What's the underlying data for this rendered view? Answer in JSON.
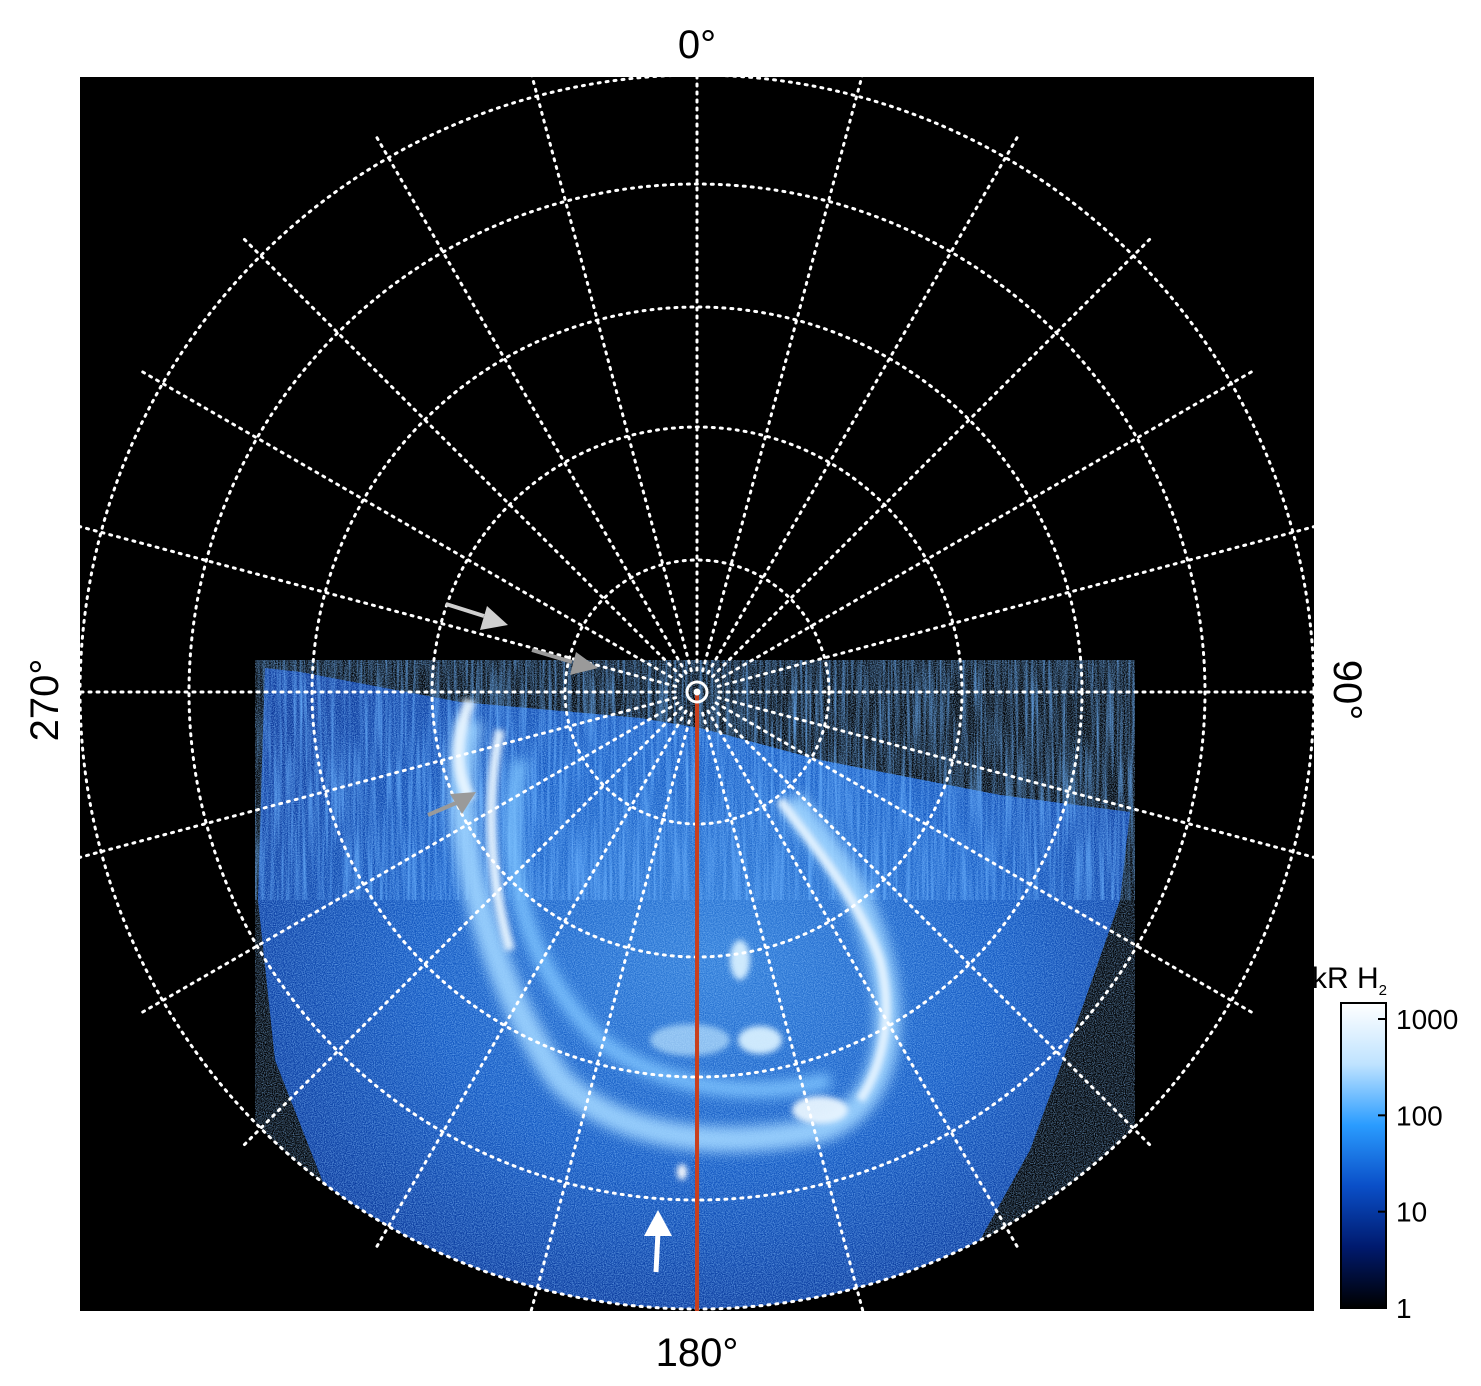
{
  "figure": {
    "longitude_labels": {
      "top": "0°",
      "right": "90°",
      "bottom": "180°",
      "left": "270°"
    },
    "colorbar": {
      "title_main": "kR H",
      "title_subscript": "2",
      "ticks": [
        "1000",
        "100",
        "10",
        "1"
      ],
      "scale": "logarithmic",
      "colors": [
        "#000000",
        "#001a6e",
        "#0a4fc8",
        "#2a9cff",
        "#bfe3ff",
        "#ffffff"
      ]
    },
    "colors": {
      "background": "#000000",
      "grid": "#ffffff",
      "meridian_line": "#c8401e",
      "arrow_white": "#ffffff",
      "arrow_gray": "#9a9a9a"
    },
    "annotations": {
      "arrows": [
        {
          "color": "gray",
          "pointing": "toward pole",
          "location": "upper-left"
        },
        {
          "color": "gray",
          "pointing": "toward pole",
          "location": "upper-left"
        },
        {
          "color": "gray",
          "pointing": "toward auroral arc",
          "location": "left"
        },
        {
          "color": "white",
          "pointing": "up",
          "location": "bottom"
        }
      ]
    }
  }
}
